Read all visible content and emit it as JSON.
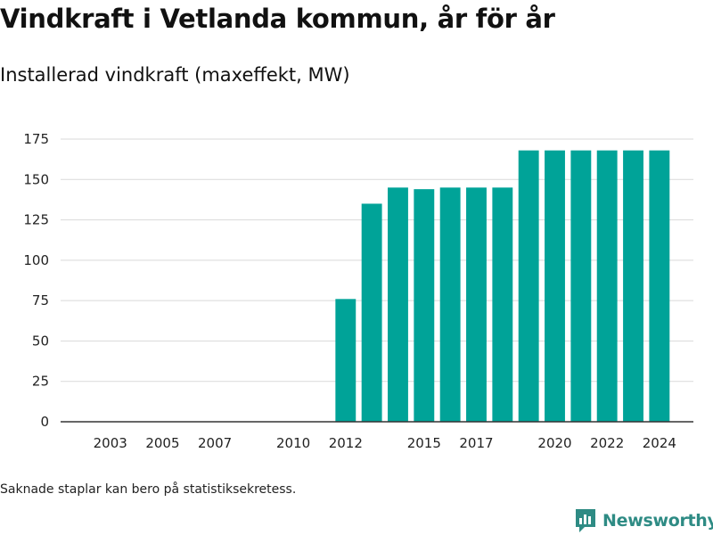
{
  "header": {
    "title": "Vindkraft i Vetlanda kommun, år för år",
    "subtitle": "Installerad vindkraft (maxeffekt, MW)"
  },
  "footnote": "Saknade staplar kan bero på statistiksekretess.",
  "brand": {
    "name": "Newsworthy",
    "icon": "newsworthy-logo-icon",
    "color": "#2e8b84"
  },
  "chart_data": {
    "type": "bar",
    "title": "Vindkraft i Vetlanda kommun, år för år",
    "subtitle": "Installerad vindkraft (maxeffekt, MW)",
    "xlabel": "",
    "ylabel": "",
    "ylim": [
      0,
      175
    ],
    "yticks": [
      0,
      25,
      50,
      75,
      100,
      125,
      150,
      175
    ],
    "xticks": [
      2003,
      2005,
      2007,
      2010,
      2012,
      2015,
      2017,
      2020,
      2022,
      2024
    ],
    "xlim": [
      2001.1,
      2025.3
    ],
    "grid": true,
    "bar_color": "#00a398",
    "categories": [
      2012,
      2013,
      2014,
      2015,
      2016,
      2017,
      2018,
      2019,
      2020,
      2021,
      2022,
      2023,
      2024
    ],
    "values": [
      76,
      135,
      145,
      144,
      145,
      145,
      145,
      168,
      168,
      168,
      168,
      168,
      168
    ]
  }
}
